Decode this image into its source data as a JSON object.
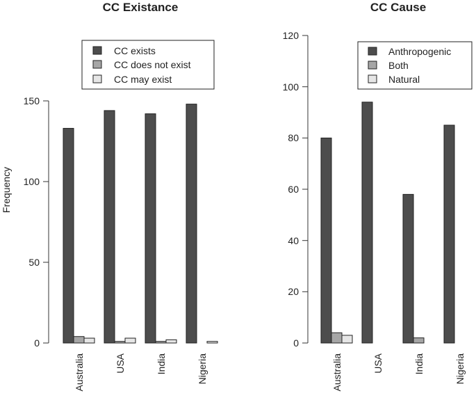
{
  "chart_data": [
    {
      "type": "bar",
      "title": "CC Existance",
      "xlabel": "",
      "ylabel": "Frequency",
      "categories": [
        "Australia",
        "USA",
        "India",
        "Nigeria"
      ],
      "series": [
        {
          "name": "CC exists",
          "values": [
            133,
            144,
            142,
            148
          ]
        },
        {
          "name": "CC does not exist",
          "values": [
            4,
            1,
            1,
            0
          ]
        },
        {
          "name": "CC may exist",
          "values": [
            3,
            3,
            2,
            1
          ]
        }
      ],
      "ylim": [
        0,
        150
      ],
      "yticks": [
        0,
        50,
        100,
        150
      ],
      "legend_position": "top-right",
      "grid": false
    },
    {
      "type": "bar",
      "title": "CC Cause",
      "xlabel": "",
      "ylabel": "",
      "categories": [
        "Australia",
        "USA",
        "India",
        "Nigeria"
      ],
      "series": [
        {
          "name": "Anthropogenic",
          "values": [
            80,
            94,
            58,
            85
          ]
        },
        {
          "name": "Both",
          "values": [
            4,
            0,
            2,
            0
          ]
        },
        {
          "name": "Natural",
          "values": [
            3,
            0,
            0,
            0
          ]
        }
      ],
      "ylim": [
        0,
        120
      ],
      "yticks": [
        0,
        20,
        40,
        60,
        80,
        100,
        120
      ],
      "legend_position": "top-right",
      "grid": false
    }
  ],
  "colors": {
    "series": [
      "#4d4d4d",
      "#a6a6a6",
      "#e6e6e6"
    ],
    "axis": "#333333"
  }
}
